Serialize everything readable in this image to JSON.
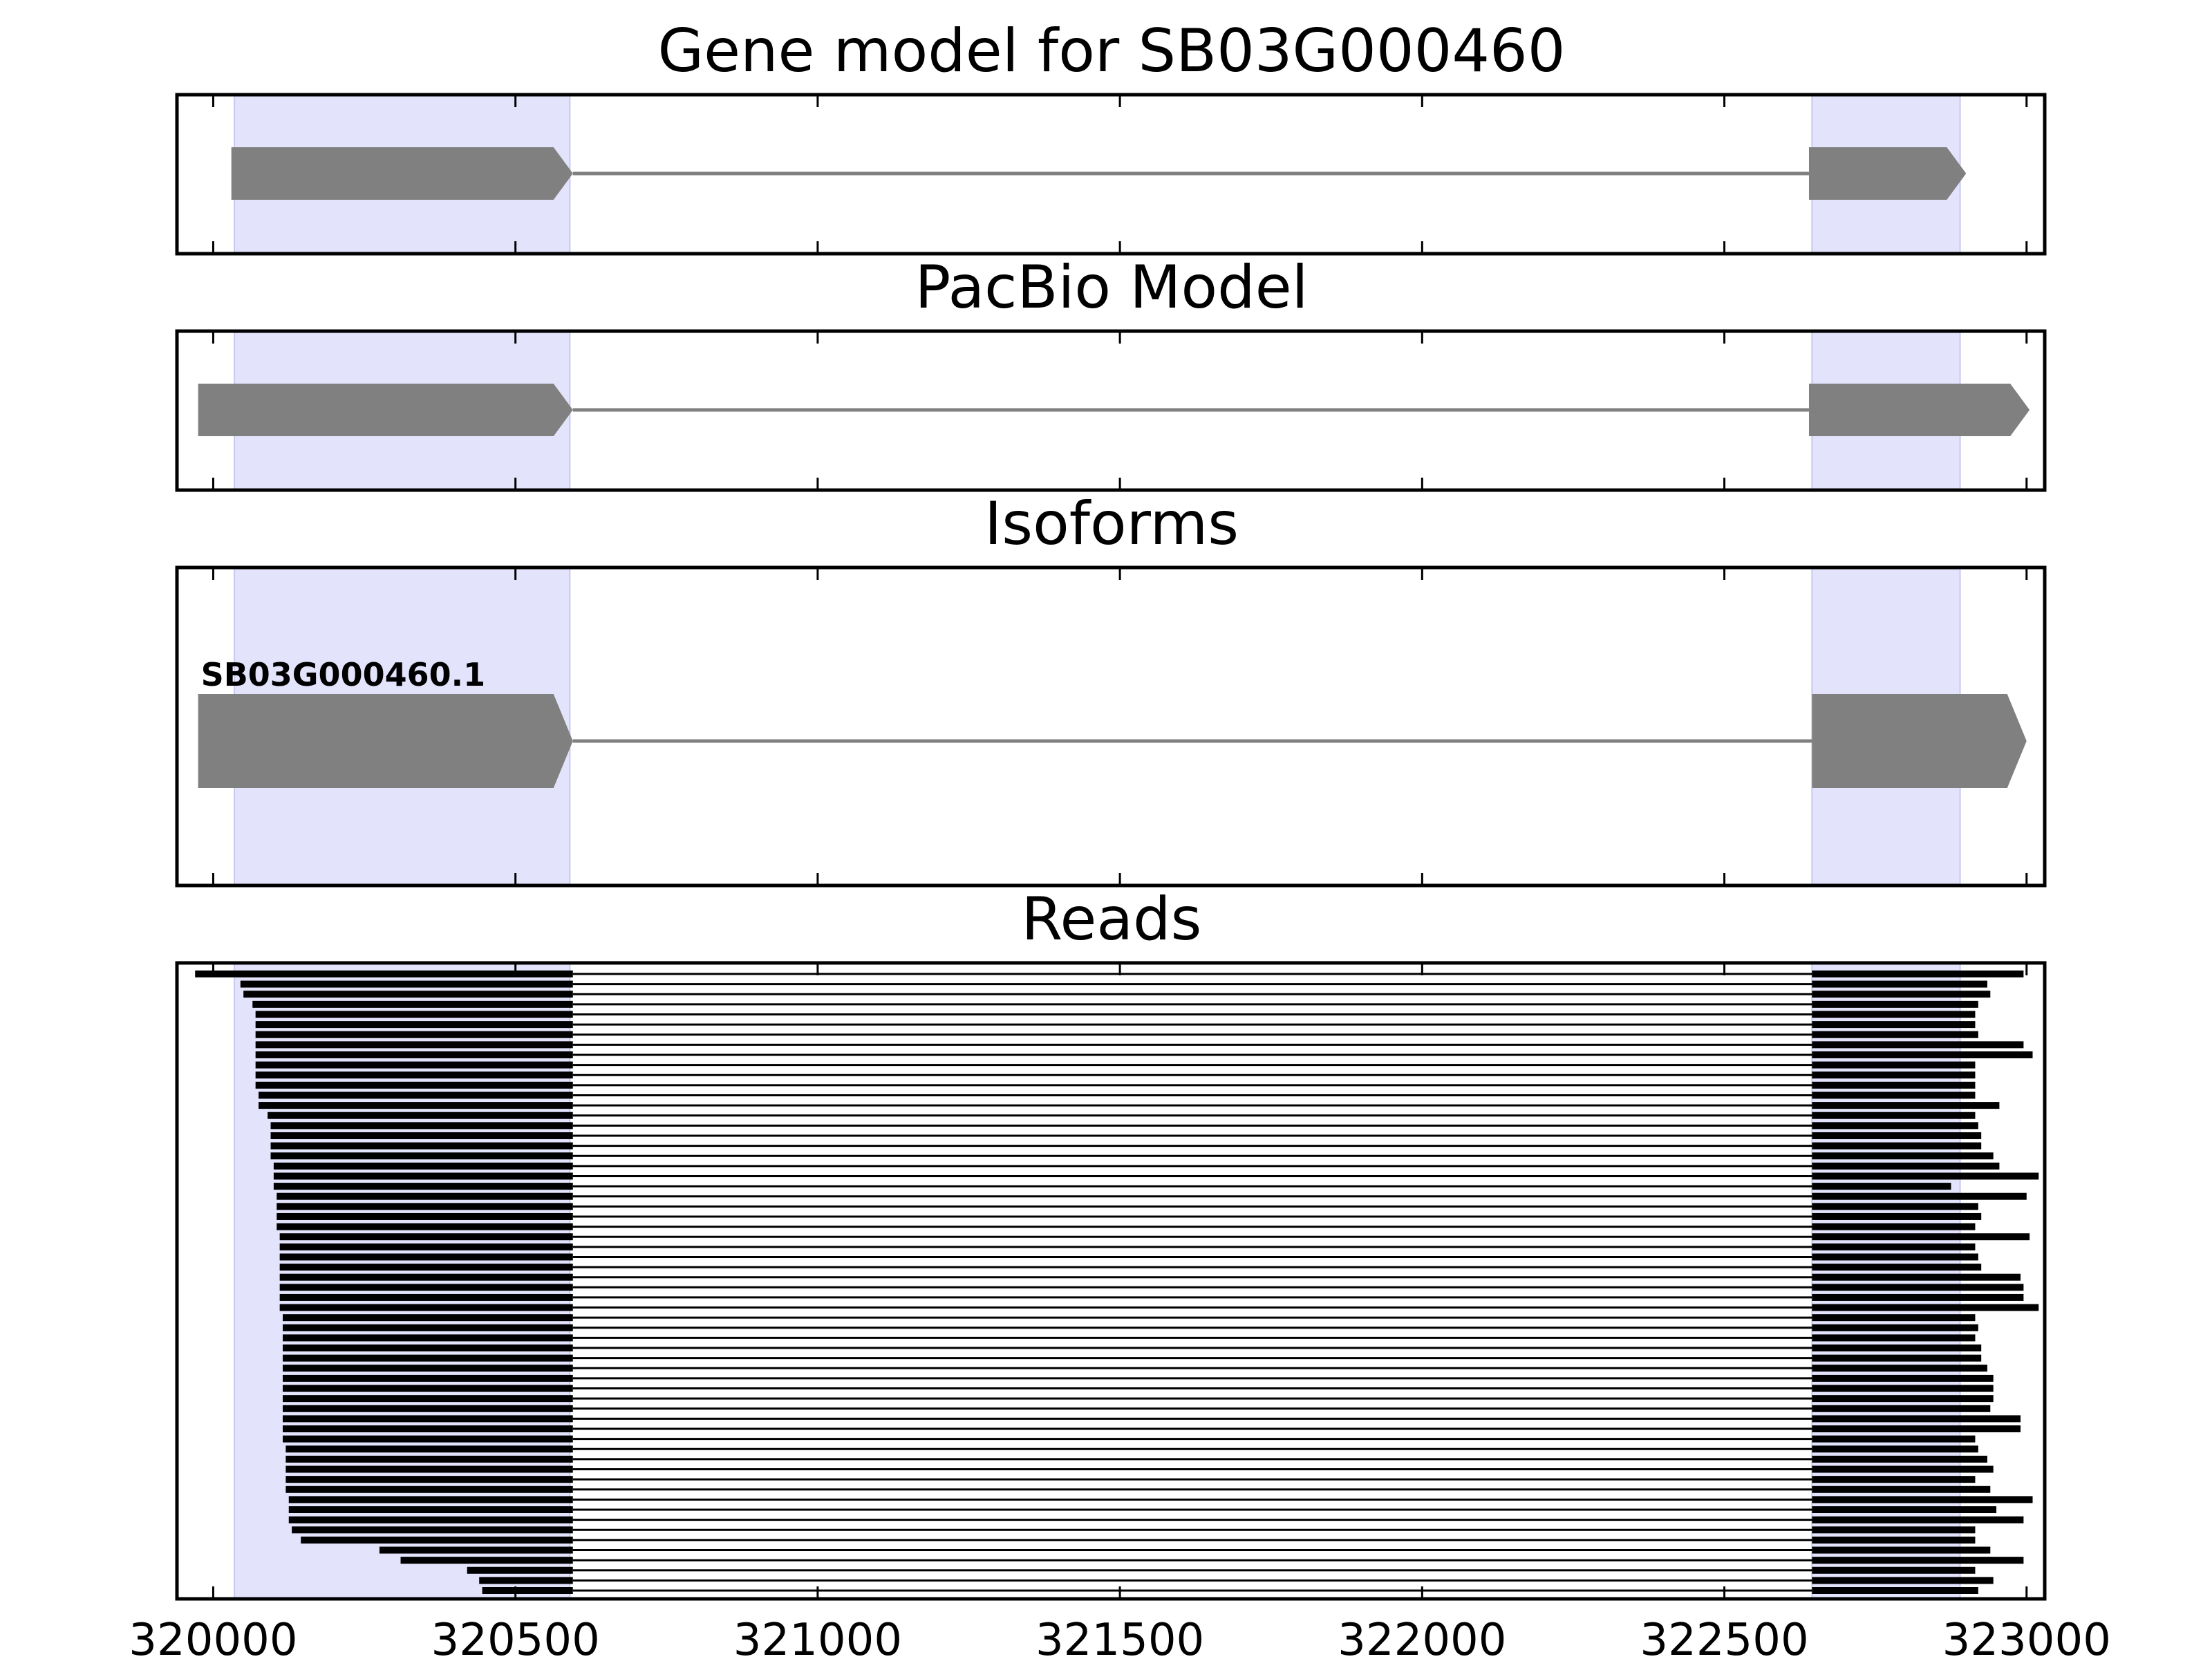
{
  "figure": {
    "panel_titles": [
      "Gene model for SB03G000460",
      "PacBio Model",
      "Isoforms",
      "Reads"
    ]
  },
  "chart_data": {
    "type": "gene_structure",
    "xlim": [
      319940,
      323030
    ],
    "x_ticks": [
      320000,
      320500,
      321000,
      321500,
      322000,
      322500,
      323000
    ],
    "x_tick_labels": [
      "320000",
      "320500",
      "321000",
      "321500",
      "322000",
      "322500",
      "323000"
    ],
    "colors": {
      "exon_shade": "#e3e3fc",
      "exon_shade_edge": "#c8c8f2",
      "model": "#808080",
      "reads": "#000000"
    },
    "exon_shading": [
      [
        320035,
        320590
      ],
      [
        322645,
        322890
      ]
    ],
    "gene_model": {
      "title": "Gene model for SB03G000460",
      "strand": "+",
      "exons": [
        [
          320030,
          320595
        ],
        [
          322640,
          322900
        ]
      ]
    },
    "pacbio_model": {
      "title": "PacBio Model",
      "strand": "+",
      "exons": [
        [
          319975,
          320595
        ],
        [
          322640,
          323005
        ]
      ]
    },
    "isoforms": {
      "title": "Isoforms",
      "items": [
        {
          "name": "SB03G000460.1",
          "strand": "+",
          "exons": [
            [
              319975,
              320595
            ],
            [
              322645,
              323000
            ]
          ]
        }
      ]
    },
    "reads": {
      "title": "Reads",
      "intron": [
        320595,
        322645
      ],
      "starts": [
        319970,
        320045,
        320050,
        320065,
        320070,
        320070,
        320070,
        320070,
        320070,
        320070,
        320070,
        320070,
        320075,
        320075,
        320090,
        320095,
        320095,
        320095,
        320095,
        320100,
        320100,
        320100,
        320105,
        320105,
        320105,
        320105,
        320110,
        320110,
        320110,
        320110,
        320110,
        320110,
        320110,
        320110,
        320115,
        320115,
        320115,
        320115,
        320115,
        320115,
        320115,
        320115,
        320115,
        320115,
        320115,
        320115,
        320115,
        320120,
        320120,
        320120,
        320120,
        320120,
        320125,
        320125,
        320125,
        320130,
        320145,
        320275,
        320310,
        320420,
        320440,
        320445
      ],
      "ends": [
        322995,
        322935,
        322940,
        322920,
        322915,
        322915,
        322920,
        322995,
        323010,
        322915,
        322915,
        322915,
        322915,
        322955,
        322915,
        322920,
        322925,
        322925,
        322945,
        322955,
        323020,
        322875,
        323000,
        322920,
        322925,
        322915,
        323005,
        322915,
        322920,
        322925,
        322990,
        322995,
        322995,
        323020,
        322915,
        322920,
        322915,
        322925,
        322925,
        322935,
        322945,
        322945,
        322945,
        322940,
        322990,
        322990,
        322915,
        322920,
        322935,
        322945,
        322915,
        322940,
        323010,
        322950,
        322995,
        322915,
        322915,
        322940,
        322995,
        322915,
        322945,
        322920
      ]
    }
  }
}
